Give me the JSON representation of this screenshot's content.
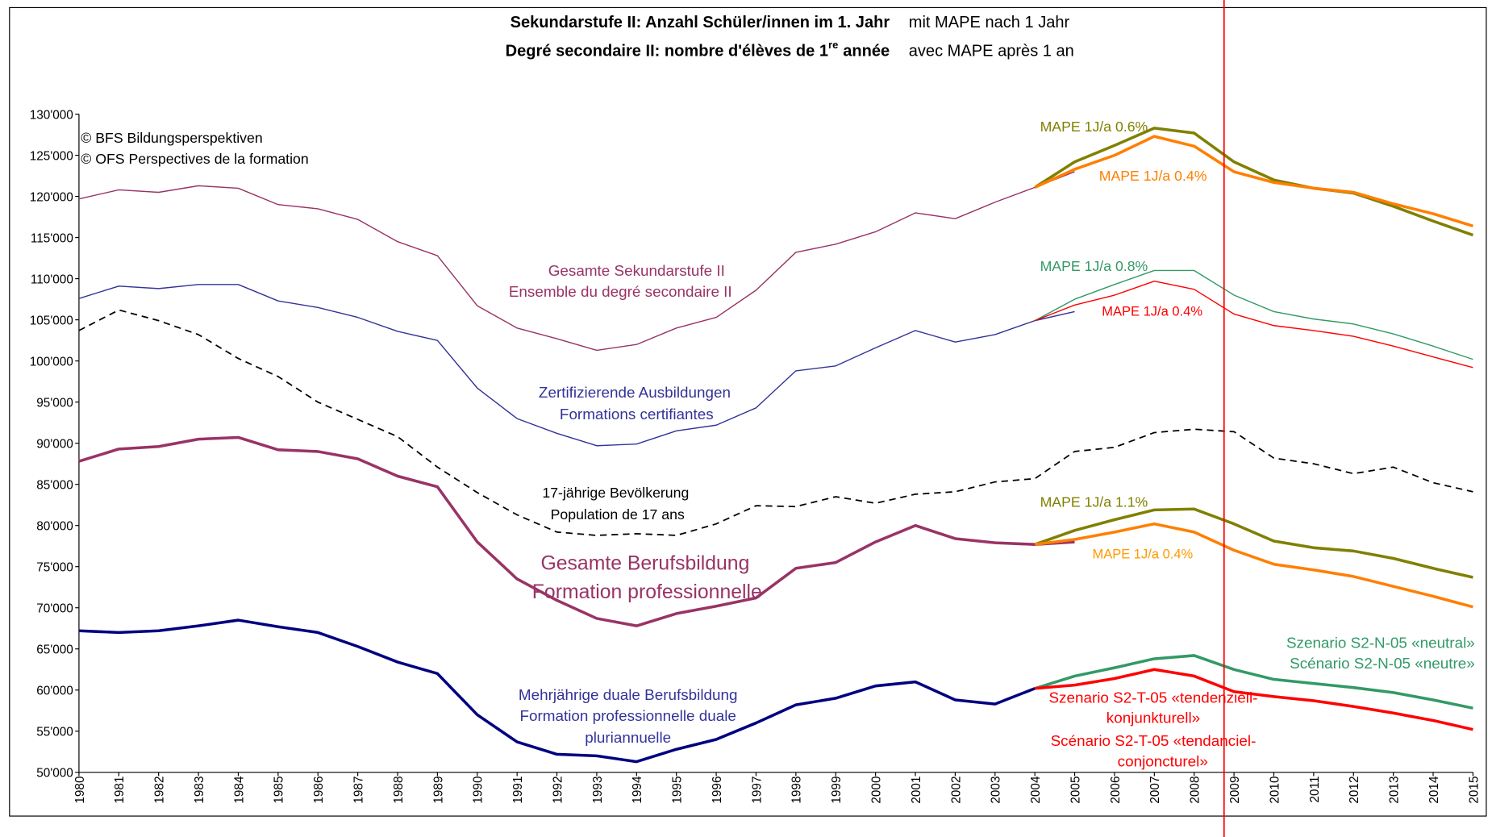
{
  "chart_data": {
    "type": "line",
    "title": [
      "Sekundarstufe II: Anzahl Schüler/innen im 1. Jahr",
      "Degré secondaire II: nombre d'élèves de 1",
      "re",
      "année"
    ],
    "subtitle": [
      "mit MAPE nach 1 Jahr",
      "avec MAPE après 1 an"
    ],
    "x": [
      1980,
      1981,
      1982,
      1983,
      1984,
      1985,
      1986,
      1987,
      1988,
      1989,
      1990,
      1991,
      1992,
      1993,
      1994,
      1995,
      1996,
      1997,
      1998,
      1999,
      2000,
      2001,
      2002,
      2003,
      2004,
      2005,
      2006,
      2007,
      2008,
      2009,
      2010,
      2011,
      2012,
      2013,
      2014,
      2015
    ],
    "xlim": [
      1980,
      2015
    ],
    "ylim": [
      50000,
      130000
    ],
    "yticks": [
      {
        "value": 50000,
        "label": "50'000"
      },
      {
        "value": 55000,
        "label": "55'000"
      },
      {
        "value": 60000,
        "label": "60'000"
      },
      {
        "value": 65000,
        "label": "65'000"
      },
      {
        "value": 70000,
        "label": "70'000"
      },
      {
        "value": 75000,
        "label": "75'000"
      },
      {
        "value": 80000,
        "label": "80'000"
      },
      {
        "value": 85000,
        "label": "85'000"
      },
      {
        "value": 90000,
        "label": "90'000"
      },
      {
        "value": 95000,
        "label": "95'000"
      },
      {
        "value": 100000,
        "label": "100'000"
      },
      {
        "value": 105000,
        "label": "105'000"
      },
      {
        "value": 110000,
        "label": "110'000"
      },
      {
        "value": 115000,
        "label": "115'000"
      },
      {
        "value": 120000,
        "label": "120'000"
      },
      {
        "value": 125000,
        "label": "125'000"
      },
      {
        "value": 130000,
        "label": "130'000"
      }
    ],
    "grid": false,
    "series": [
      {
        "color": "#993366",
        "linewidth": 1.2,
        "values": [
          119700,
          120800,
          120500,
          121300,
          121000,
          119000,
          118500,
          117200,
          114500,
          112800,
          106700,
          104000,
          102700,
          101300,
          102000,
          104000,
          105300,
          108600,
          113200,
          114200,
          115700,
          118000,
          117300,
          119300,
          121100,
          123000,
          null,
          null,
          null,
          null,
          null,
          null,
          null,
          null,
          null,
          null
        ]
      },
      {
        "color": "#808000",
        "linewidth": 3,
        "values": [
          null,
          null,
          null,
          null,
          null,
          null,
          null,
          null,
          null,
          null,
          null,
          null,
          null,
          null,
          null,
          null,
          null,
          null,
          null,
          null,
          null,
          null,
          null,
          null,
          121100,
          124200,
          126200,
          128300,
          127700,
          124200,
          122000,
          121000,
          120400,
          118800,
          117000,
          115300
        ]
      },
      {
        "color": "#ff7f00",
        "linewidth": 3,
        "values": [
          null,
          null,
          null,
          null,
          null,
          null,
          null,
          null,
          null,
          null,
          null,
          null,
          null,
          null,
          null,
          null,
          null,
          null,
          null,
          null,
          null,
          null,
          null,
          null,
          121100,
          123300,
          125000,
          127300,
          126100,
          123000,
          121700,
          121000,
          120500,
          119100,
          117900,
          116400
        ]
      },
      {
        "color": "#333399",
        "linewidth": 1.2,
        "values": [
          107600,
          109100,
          108800,
          109300,
          109300,
          107300,
          106500,
          105300,
          103600,
          102500,
          96700,
          93000,
          91200,
          89700,
          89900,
          91500,
          92200,
          94300,
          98800,
          99400,
          101600,
          103700,
          102300,
          103200,
          104900,
          106000,
          null,
          null,
          null,
          null,
          null,
          null,
          null,
          null,
          null,
          null
        ]
      },
      {
        "color": "#339966",
        "linewidth": 1.2,
        "values": [
          null,
          null,
          null,
          null,
          null,
          null,
          null,
          null,
          null,
          null,
          null,
          null,
          null,
          null,
          null,
          null,
          null,
          null,
          null,
          null,
          null,
          null,
          null,
          null,
          104900,
          107500,
          109300,
          111000,
          111000,
          108000,
          106000,
          105100,
          104500,
          103300,
          101800,
          100200
        ]
      },
      {
        "color": "#ff0000",
        "linewidth": 1.2,
        "values": [
          null,
          null,
          null,
          null,
          null,
          null,
          null,
          null,
          null,
          null,
          null,
          null,
          null,
          null,
          null,
          null,
          null,
          null,
          null,
          null,
          null,
          null,
          null,
          null,
          104900,
          106800,
          108000,
          109700,
          108700,
          105700,
          104300,
          103700,
          103000,
          101800,
          100500,
          99200
        ]
      },
      {
        "color": "#000000",
        "linewidth": 1.5,
        "dashed": true,
        "values": [
          103700,
          106200,
          104900,
          103200,
          100300,
          98100,
          95000,
          92900,
          90800,
          87100,
          84000,
          81300,
          79200,
          78800,
          79000,
          78800,
          80200,
          82400,
          82300,
          83500,
          82700,
          83800,
          84100,
          85300,
          85700,
          89000,
          89500,
          91300,
          91700,
          91400,
          88200,
          87500,
          86300,
          87100,
          85200,
          84100
        ]
      },
      {
        "color": "#993366",
        "linewidth": 3,
        "values": [
          87800,
          89300,
          89600,
          90500,
          90700,
          89200,
          89000,
          88100,
          86000,
          84700,
          78000,
          73500,
          70900,
          68700,
          67800,
          69300,
          70200,
          71200,
          74800,
          75500,
          78000,
          80000,
          78400,
          77900,
          77700,
          78000,
          null,
          null,
          null,
          null,
          null,
          null,
          null,
          null,
          null,
          null
        ]
      },
      {
        "color": "#808000",
        "linewidth": 3,
        "values": [
          null,
          null,
          null,
          null,
          null,
          null,
          null,
          null,
          null,
          null,
          null,
          null,
          null,
          null,
          null,
          null,
          null,
          null,
          null,
          null,
          null,
          null,
          null,
          null,
          77700,
          79400,
          80700,
          81900,
          82000,
          80200,
          78100,
          77300,
          76900,
          76000,
          74800,
          73700
        ]
      },
      {
        "color": "#ff7f00",
        "linewidth": 3,
        "values": [
          null,
          null,
          null,
          null,
          null,
          null,
          null,
          null,
          null,
          null,
          null,
          null,
          null,
          null,
          null,
          null,
          null,
          null,
          null,
          null,
          null,
          null,
          null,
          null,
          77700,
          78300,
          79200,
          80200,
          79200,
          77000,
          75300,
          74600,
          73800,
          72600,
          71400,
          70100
        ]
      },
      {
        "color": "#000080",
        "linewidth": 3,
        "values": [
          67200,
          67000,
          67200,
          67800,
          68500,
          67700,
          67000,
          65300,
          63400,
          62000,
          57000,
          53700,
          52200,
          52000,
          51300,
          52800,
          54000,
          56000,
          58200,
          59000,
          60500,
          61000,
          58800,
          58300,
          60200,
          null,
          null,
          null,
          null,
          null,
          null,
          null,
          null,
          null,
          null,
          null
        ]
      },
      {
        "color": "#339966",
        "linewidth": 3,
        "values": [
          null,
          null,
          null,
          null,
          null,
          null,
          null,
          null,
          null,
          null,
          null,
          null,
          null,
          null,
          null,
          null,
          null,
          null,
          null,
          null,
          null,
          null,
          null,
          null,
          60200,
          61700,
          62700,
          63800,
          64200,
          62500,
          61300,
          60800,
          60300,
          59700,
          58800,
          57800
        ]
      },
      {
        "color": "#ff0000",
        "linewidth": 3,
        "values": [
          null,
          null,
          null,
          null,
          null,
          null,
          null,
          null,
          null,
          null,
          null,
          null,
          null,
          null,
          null,
          null,
          null,
          null,
          null,
          null,
          null,
          null,
          null,
          null,
          60200,
          60600,
          61400,
          62500,
          61700,
          59800,
          59200,
          58700,
          58000,
          57200,
          56300,
          55200
        ]
      }
    ],
    "annotations": [
      {
        "text": "© BFS Bildungsperspektiven",
        "color": "#000000"
      },
      {
        "text": "© OFS Perspectives de la formation",
        "color": "#000000"
      },
      {
        "text": "MAPE 1J/a 0.6%",
        "color": "#808000"
      },
      {
        "text": "MAPE 1J/a 0.4%",
        "color": "#ff7f00"
      },
      {
        "text": "Gesamte Sekundarstufe II",
        "color": "#993366"
      },
      {
        "text": "Ensemble du degré secondaire II",
        "color": "#993366"
      },
      {
        "text": "MAPE 1J/a 0.8%",
        "color": "#339966"
      },
      {
        "text": "MAPE 1J/a 0.4%",
        "color": "#ff0000"
      },
      {
        "text": "Zertifizierende Ausbildungen",
        "color": "#333399"
      },
      {
        "text": "Formations certifiantes",
        "color": "#333399"
      },
      {
        "text": "17-jährige Bevölkerung",
        "color": "#000000"
      },
      {
        "text": "Population de 17 ans",
        "color": "#000000"
      },
      {
        "text": "MAPE 1J/a 1.1%",
        "color": "#808000"
      },
      {
        "text": "MAPE 1J/a 0.4%",
        "color": "#ff9900"
      },
      {
        "text": "Gesamte Berufsbildung",
        "color": "#993366"
      },
      {
        "text": "Formation professionnelle",
        "color": "#993366"
      },
      {
        "text": "Mehrjährige duale Berufsbildung",
        "color": "#333399"
      },
      {
        "text": "Formation professionnelle duale",
        "color": "#333399"
      },
      {
        "text": "pluriannuelle",
        "color": "#333399"
      },
      {
        "text": "Szenario S2-N-05 «neutral»",
        "color": "#339966"
      },
      {
        "text": "Scénario S2-N-05 «neutre»",
        "color": "#339966"
      },
      {
        "text": "Szenario S2-T-05 «tendenziell-",
        "color": "#ff0000"
      },
      {
        "text": "konjunkturell»",
        "color": "#ff0000"
      },
      {
        "text": "Scénario S2-T-05 «tendanciel-",
        "color": "#ff0000"
      },
      {
        "text": "conjoncturel»",
        "color": "#ff0000"
      }
    ]
  }
}
